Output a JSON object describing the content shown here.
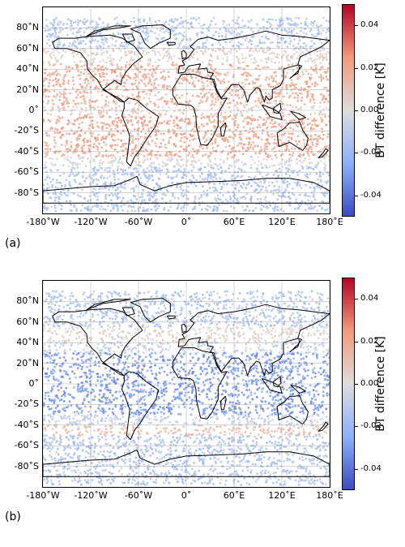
{
  "figure": {
    "colorbar_label": "BT difference [K]",
    "colorbar_ticks": [
      "0.04",
      "0.02",
      "0.00",
      "-0.02",
      "-0.04"
    ],
    "colorbar_range": [
      -0.05,
      0.05
    ],
    "colormap": [
      "#3b4cc0",
      "#8db0fe",
      "#dddddd",
      "#f49a7b",
      "#b40426"
    ],
    "y_ticks": [
      {
        "label": "80˚N",
        "lat": 80
      },
      {
        "label": "60˚N",
        "lat": 60
      },
      {
        "label": "40˚N",
        "lat": 40
      },
      {
        "label": "20˚N",
        "lat": 20
      },
      {
        "label": "0˚",
        "lat": 0
      },
      {
        "label": "-20˚S",
        "lat": -20
      },
      {
        "label": "-40˚S",
        "lat": -40
      },
      {
        "label": "-60˚S",
        "lat": -60
      },
      {
        "label": "-80˚S",
        "lat": -80
      }
    ],
    "x_ticks": [
      {
        "label": "-180˚W",
        "lon": -180
      },
      {
        "label": "-120˚W",
        "lon": -120
      },
      {
        "label": "-60˚W",
        "lon": -60
      },
      {
        "label": "0˚",
        "lon": 0
      },
      {
        "label": "60˚E",
        "lon": 60
      },
      {
        "label": "120˚E",
        "lon": 120
      },
      {
        "label": "180˚E",
        "lon": 180
      }
    ],
    "lon_range": [
      -180,
      180
    ],
    "lat_range": [
      -100,
      100
    ],
    "grid": true
  },
  "panels": [
    {
      "label": "(a)",
      "pattern": "warm-subtropics"
    },
    {
      "label": "(b)",
      "pattern": "cool-tropics"
    }
  ]
}
